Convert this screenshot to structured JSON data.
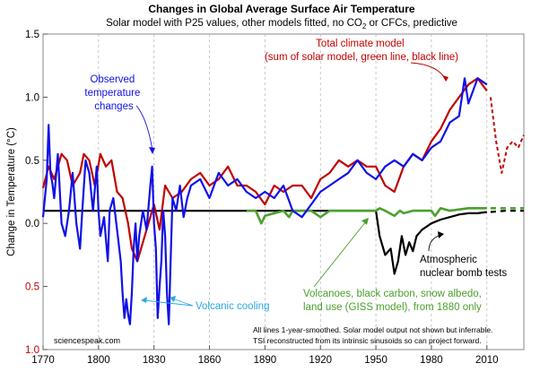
{
  "chart_data": {
    "type": "line",
    "title": "Changes in Global Average Surface Air Temperature",
    "subtitle_pre": "Solar model with P25 values, other models fitted, no CO",
    "subtitle_sub": "2",
    "subtitle_post": " or CFCs, predictive",
    "ylabel": "Change in Temperature (°C)",
    "xlim": [
      1770,
      2030
    ],
    "ylim": [
      -1.0,
      1.5
    ],
    "x_ticks": [
      1770,
      1800,
      1830,
      1860,
      1890,
      1920,
      1950,
      1980,
      2010
    ],
    "x_tick_labels": [
      "1770",
      "1800",
      "1830",
      "1860",
      "1890",
      "1920",
      "1950",
      "1980",
      "2010"
    ],
    "y_ticks": [
      1.5,
      1.0,
      0.5,
      0.0,
      -0.5,
      -1.0
    ],
    "y_tick_labels": [
      "1.5",
      "1.0",
      "0.5",
      "0.0",
      "0.5",
      "1.0"
    ],
    "grid": "vertical dashed",
    "annotations": {
      "total_line1": "Total climate model",
      "total_line2": "(sum of solar model, green line, black line)",
      "observed_line1": "Observed",
      "observed_line2": "temperature",
      "observed_line3": "changes",
      "volcanic": "Volcanic cooling",
      "bomb_line1": "Atmospheric",
      "bomb_line2": "nuclear bomb tests",
      "giss_line1": "Volcanoes, black carbon, snow albedo,",
      "giss_line2": "land use (GISS model), from 1880 only",
      "footnote_line1": "All lines 1-year-smoothed. Solar model output not shown but inferrable.",
      "footnote_line2": "TSI reconstructed from its intrinsic sinusoids so can project forward.",
      "source": "sciencespeak.com"
    },
    "series": [
      {
        "key": "observed",
        "color": "#1010e8",
        "x": [
          1770,
          1772,
          1773,
          1774,
          1775,
          1776,
          1778,
          1780,
          1782,
          1784,
          1786,
          1788,
          1790,
          1791,
          1793,
          1795,
          1797,
          1799,
          1800,
          1801,
          1803,
          1805,
          1806,
          1808,
          1810,
          1812,
          1813,
          1814,
          1815,
          1816,
          1817,
          1818,
          1819,
          1820,
          1821,
          1822,
          1824,
          1826,
          1828,
          1829,
          1830,
          1831,
          1832,
          1833,
          1834,
          1835,
          1836,
          1837,
          1838,
          1839,
          1840,
          1842,
          1844,
          1846,
          1848,
          1850,
          1855,
          1860,
          1865,
          1870,
          1875,
          1880,
          1885,
          1890,
          1895,
          1900,
          1905,
          1910,
          1915,
          1920,
          1925,
          1930,
          1935,
          1940,
          1945,
          1950,
          1955,
          1960,
          1965,
          1970,
          1975,
          1980,
          1985,
          1990,
          1995,
          1998,
          2000,
          2005,
          2010
        ],
        "y": [
          0.05,
          0.35,
          0.78,
          0.4,
          0.32,
          0.2,
          0.55,
          0.0,
          -0.1,
          0.1,
          0.4,
          0.0,
          -0.2,
          0.05,
          0.5,
          0.4,
          0.1,
          0.45,
          0.1,
          -0.1,
          0.05,
          -0.3,
          0.1,
          0.2,
          -0.05,
          -0.3,
          -0.55,
          -0.75,
          -0.6,
          -0.72,
          -0.8,
          -0.55,
          -0.2,
          0.0,
          -0.3,
          -0.1,
          0.1,
          -0.05,
          0.3,
          0.45,
          0.0,
          -0.2,
          -0.75,
          -0.5,
          -0.3,
          0.1,
          -0.1,
          -0.55,
          -0.8,
          -0.3,
          0.2,
          0.1,
          0.3,
          0.05,
          0.2,
          0.3,
          0.35,
          0.2,
          0.4,
          0.3,
          0.35,
          0.25,
          0.2,
          0.25,
          0.2,
          0.3,
          0.1,
          0.05,
          0.15,
          0.25,
          0.3,
          0.35,
          0.4,
          0.5,
          0.4,
          0.35,
          0.45,
          0.5,
          0.45,
          0.55,
          0.5,
          0.6,
          0.65,
          0.8,
          0.85,
          1.15,
          0.95,
          1.15,
          1.1
        ]
      },
      {
        "key": "total_model",
        "color": "#c00000",
        "x": [
          1770,
          1773,
          1776,
          1780,
          1783,
          1786,
          1790,
          1792,
          1795,
          1798,
          1801,
          1804,
          1807,
          1810,
          1813,
          1816,
          1818,
          1821,
          1824,
          1827,
          1830,
          1833,
          1836,
          1840,
          1845,
          1850,
          1855,
          1860,
          1865,
          1870,
          1875,
          1880,
          1885,
          1890,
          1895,
          1900,
          1905,
          1910,
          1915,
          1920,
          1925,
          1930,
          1935,
          1940,
          1945,
          1950,
          1955,
          1960,
          1965,
          1970,
          1975,
          1980,
          1985,
          1990,
          1995,
          2000,
          2005,
          2010
        ],
        "y": [
          0.28,
          0.45,
          0.35,
          0.55,
          0.5,
          0.3,
          0.4,
          0.55,
          0.5,
          0.3,
          0.55,
          0.45,
          0.5,
          0.25,
          0.2,
          0.0,
          -0.2,
          -0.3,
          -0.15,
          0.0,
          0.15,
          -0.05,
          0.3,
          0.2,
          0.25,
          0.35,
          0.4,
          0.3,
          0.35,
          0.45,
          0.3,
          0.3,
          0.25,
          0.15,
          0.3,
          0.25,
          0.3,
          0.3,
          0.2,
          0.35,
          0.4,
          0.5,
          0.45,
          0.5,
          0.45,
          0.45,
          0.3,
          0.25,
          0.45,
          0.55,
          0.5,
          0.65,
          0.75,
          0.9,
          1.0,
          1.1,
          1.15,
          1.05
        ]
      },
      {
        "key": "total_model_projection",
        "color": "#c00000",
        "x": [
          2012,
          2015,
          2018,
          2021,
          2024,
          2027,
          2030
        ],
        "y": [
          1.0,
          0.65,
          0.4,
          0.6,
          0.65,
          0.6,
          0.7
        ]
      },
      {
        "key": "giss",
        "color": "#4aa02c",
        "x": [
          1880,
          1885,
          1888,
          1890,
          1895,
          1900,
          1903,
          1905,
          1910,
          1915,
          1920,
          1925,
          1930,
          1935,
          1940,
          1945,
          1950,
          1952,
          1955,
          1960,
          1963,
          1965,
          1970,
          1975,
          1980,
          1982,
          1985,
          1990,
          1995,
          2000,
          2005,
          2010
        ],
        "y": [
          0.1,
          0.1,
          0.0,
          0.06,
          0.08,
          0.1,
          0.05,
          0.1,
          0.1,
          0.1,
          0.05,
          0.1,
          0.1,
          0.1,
          0.1,
          0.1,
          0.1,
          0.12,
          0.1,
          0.06,
          0.1,
          0.08,
          0.1,
          0.1,
          0.1,
          0.06,
          0.12,
          0.1,
          0.11,
          0.12,
          0.12,
          0.12
        ]
      },
      {
        "key": "giss_projection",
        "color": "#4aa02c",
        "x": [
          2012,
          2020,
          2030
        ],
        "y": [
          0.12,
          0.12,
          0.12
        ]
      },
      {
        "key": "bomb_tests",
        "color": "#000000",
        "x": [
          1770,
          1800,
          1850,
          1900,
          1950,
          1952,
          1955,
          1958,
          1960,
          1962,
          1964,
          1966,
          1968,
          1970,
          1972,
          1975,
          1980,
          1985,
          1990,
          1995,
          2000,
          2005,
          2010
        ],
        "y": [
          0.1,
          0.1,
          0.1,
          0.1,
          0.1,
          -0.1,
          -0.25,
          -0.2,
          -0.4,
          -0.3,
          -0.1,
          -0.25,
          -0.15,
          -0.22,
          -0.1,
          -0.05,
          0.0,
          0.03,
          0.05,
          0.07,
          0.08,
          0.08,
          0.09
        ]
      },
      {
        "key": "bomb_tests_projection",
        "color": "#000000",
        "x": [
          2012,
          2020,
          2030
        ],
        "y": [
          0.09,
          0.1,
          0.1
        ]
      }
    ]
  }
}
